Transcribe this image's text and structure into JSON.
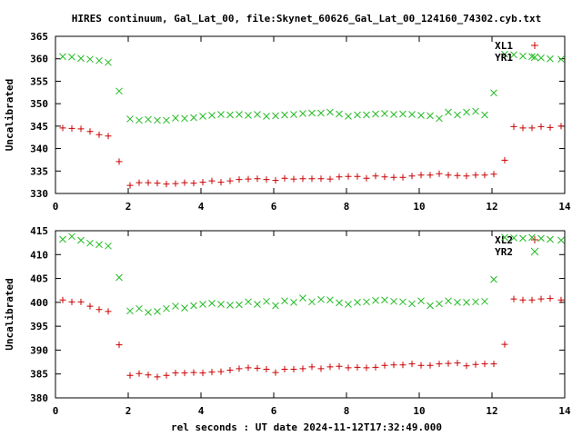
{
  "title": "HIRES continuum, Gal_Lat_00, file:Skynet_60626_Gal_Lat_00_124160_74302.cyb.txt",
  "xlabel": "rel seconds : UT date 2024-11-12T17:32:49.000",
  "colors": {
    "red": "#cc0000",
    "green": "#22bb22",
    "frame": "#000000"
  },
  "chart_data": [
    {
      "type": "scatter",
      "ylabel": "Uncalibrated",
      "xlim": [
        0,
        14
      ],
      "ylim": [
        330,
        365
      ],
      "xticks": [
        0,
        2,
        4,
        6,
        8,
        10,
        12,
        14
      ],
      "yticks": [
        330,
        335,
        340,
        345,
        350,
        355,
        360,
        365
      ],
      "legend_position": "top-right",
      "series": [
        {
          "name": "XL1",
          "marker": "plus",
          "color": "#cc0000",
          "x": [
            0.2,
            0.45,
            0.7,
            0.95,
            1.2,
            1.45,
            1.75,
            2.05,
            2.3,
            2.55,
            2.8,
            3.05,
            3.3,
            3.55,
            3.8,
            4.05,
            4.3,
            4.55,
            4.8,
            5.05,
            5.3,
            5.55,
            5.8,
            6.05,
            6.3,
            6.55,
            6.8,
            7.05,
            7.3,
            7.55,
            7.8,
            8.05,
            8.3,
            8.55,
            8.8,
            9.05,
            9.3,
            9.55,
            9.8,
            10.05,
            10.3,
            10.55,
            10.8,
            11.05,
            11.3,
            11.55,
            11.8,
            12.05,
            12.35,
            12.6,
            12.85,
            13.1,
            13.35,
            13.6,
            13.9
          ],
          "y": [
            344.6,
            344.5,
            344.4,
            343.8,
            343.1,
            342.8,
            337.1,
            331.8,
            332.4,
            332.4,
            332.3,
            332.1,
            332.2,
            332.4,
            332.3,
            332.5,
            332.8,
            332.5,
            332.8,
            333.1,
            333.2,
            333.3,
            333.1,
            332.9,
            333.4,
            333.2,
            333.3,
            333.3,
            333.3,
            333.2,
            333.7,
            333.8,
            333.8,
            333.4,
            333.9,
            333.7,
            333.6,
            333.6,
            333.9,
            334.1,
            334.1,
            334.4,
            334.1,
            334.0,
            333.9,
            334.1,
            334.1,
            334.3,
            337.4,
            344.9,
            344.6,
            344.6,
            344.9,
            344.7,
            345.0
          ]
        },
        {
          "name": "YR1",
          "marker": "cross",
          "color": "#22bb22",
          "x": [
            0.2,
            0.45,
            0.7,
            0.95,
            1.2,
            1.45,
            1.75,
            2.05,
            2.3,
            2.55,
            2.8,
            3.05,
            3.3,
            3.55,
            3.8,
            4.05,
            4.3,
            4.55,
            4.8,
            5.05,
            5.3,
            5.55,
            5.8,
            6.05,
            6.3,
            6.55,
            6.8,
            7.05,
            7.3,
            7.55,
            7.8,
            8.05,
            8.3,
            8.55,
            8.8,
            9.05,
            9.3,
            9.55,
            9.8,
            10.05,
            10.3,
            10.55,
            10.8,
            11.05,
            11.3,
            11.55,
            11.8,
            12.05,
            12.35,
            12.6,
            12.85,
            13.1,
            13.35,
            13.6,
            13.9
          ],
          "y": [
            360.5,
            360.4,
            360.1,
            359.9,
            359.6,
            359.2,
            352.8,
            346.6,
            346.3,
            346.5,
            346.3,
            346.3,
            346.8,
            346.7,
            346.9,
            347.2,
            347.4,
            347.6,
            347.5,
            347.6,
            347.4,
            347.6,
            347.2,
            347.3,
            347.5,
            347.6,
            347.8,
            347.9,
            347.9,
            348.1,
            347.7,
            347.2,
            347.5,
            347.5,
            347.7,
            347.8,
            347.6,
            347.7,
            347.6,
            347.4,
            347.3,
            346.7,
            348.1,
            347.5,
            348.1,
            348.3,
            347.5,
            352.4,
            361.0,
            360.9,
            360.6,
            360.5,
            360.2,
            360.0,
            359.9
          ]
        }
      ]
    },
    {
      "type": "scatter",
      "ylabel": "Uncalibrated",
      "xlim": [
        0,
        14
      ],
      "ylim": [
        380,
        415
      ],
      "xticks": [
        0,
        2,
        4,
        6,
        8,
        10,
        12,
        14
      ],
      "yticks": [
        380,
        385,
        390,
        395,
        400,
        405,
        410,
        415
      ],
      "legend_position": "top-right",
      "series": [
        {
          "name": "XL2",
          "marker": "plus",
          "color": "#cc0000",
          "x": [
            0.2,
            0.45,
            0.7,
            0.95,
            1.2,
            1.45,
            1.75,
            2.05,
            2.3,
            2.55,
            2.8,
            3.05,
            3.3,
            3.55,
            3.8,
            4.05,
            4.3,
            4.55,
            4.8,
            5.05,
            5.3,
            5.55,
            5.8,
            6.05,
            6.3,
            6.55,
            6.8,
            7.05,
            7.3,
            7.55,
            7.8,
            8.05,
            8.3,
            8.55,
            8.8,
            9.05,
            9.3,
            9.55,
            9.8,
            10.05,
            10.3,
            10.55,
            10.8,
            11.05,
            11.3,
            11.55,
            11.8,
            12.05,
            12.35,
            12.6,
            12.85,
            13.1,
            13.35,
            13.6,
            13.9
          ],
          "y": [
            400.5,
            400.1,
            400.1,
            399.2,
            398.5,
            398.1,
            391.1,
            384.7,
            385.1,
            384.8,
            384.4,
            384.7,
            385.2,
            385.2,
            385.3,
            385.2,
            385.4,
            385.5,
            385.8,
            386.1,
            386.3,
            386.2,
            386.0,
            385.3,
            386.0,
            386.0,
            386.1,
            386.5,
            386.1,
            386.5,
            386.6,
            386.3,
            386.4,
            386.3,
            386.4,
            386.8,
            386.9,
            386.9,
            387.1,
            386.8,
            386.8,
            387.1,
            387.2,
            387.3,
            386.7,
            387.0,
            387.1,
            387.1,
            391.2,
            400.7,
            400.5,
            400.5,
            400.7,
            400.8,
            400.5
          ]
        },
        {
          "name": "YR2",
          "marker": "cross",
          "color": "#22bb22",
          "x": [
            0.2,
            0.45,
            0.7,
            0.95,
            1.2,
            1.45,
            1.75,
            2.05,
            2.3,
            2.55,
            2.8,
            3.05,
            3.3,
            3.55,
            3.8,
            4.05,
            4.3,
            4.55,
            4.8,
            5.05,
            5.3,
            5.55,
            5.8,
            6.05,
            6.3,
            6.55,
            6.8,
            7.05,
            7.3,
            7.55,
            7.8,
            8.05,
            8.3,
            8.55,
            8.8,
            9.05,
            9.3,
            9.55,
            9.8,
            10.05,
            10.3,
            10.55,
            10.8,
            11.05,
            11.3,
            11.55,
            11.8,
            12.05,
            12.35,
            12.6,
            12.85,
            13.1,
            13.35,
            13.6,
            13.9
          ],
          "y": [
            413.2,
            413.8,
            413.0,
            412.4,
            412.1,
            411.8,
            405.2,
            398.2,
            398.7,
            397.9,
            398.1,
            398.7,
            399.2,
            398.8,
            399.3,
            399.6,
            399.8,
            399.6,
            399.4,
            399.5,
            400.1,
            399.6,
            400.2,
            399.3,
            400.3,
            400.0,
            400.9,
            400.1,
            400.6,
            400.5,
            399.9,
            399.6,
            400.0,
            400.1,
            400.4,
            400.5,
            400.2,
            400.1,
            399.7,
            400.3,
            399.3,
            399.7,
            400.3,
            400.0,
            400.0,
            400.1,
            400.2,
            404.8,
            413.6,
            413.5,
            413.4,
            413.6,
            413.4,
            413.2,
            413.0
          ]
        }
      ]
    }
  ]
}
